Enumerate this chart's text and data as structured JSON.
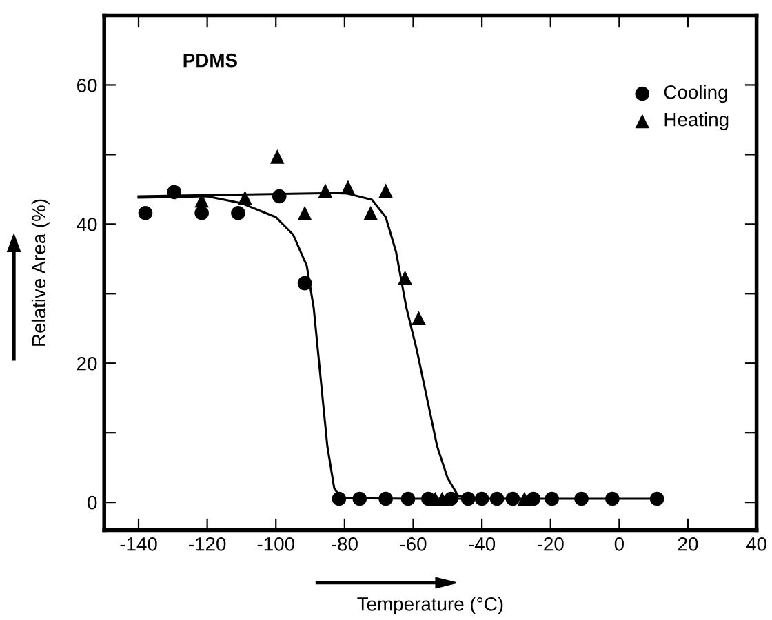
{
  "chart_data": {
    "type": "scatter",
    "xlabel": "Temperature (°C)",
    "ylabel": "Relative Area (%)",
    "annotations": [
      "PDMS"
    ],
    "xlim": [
      -150,
      40
    ],
    "ylim": [
      -4,
      70
    ],
    "xticks": [
      -140,
      -120,
      -100,
      -80,
      -60,
      -40,
      -20,
      0,
      20,
      40
    ],
    "yticks": [
      0,
      {
        "value": 10,
        "label": null
      },
      20,
      {
        "value": 30,
        "label": null
      },
      40,
      {
        "value": 50,
        "label": null
      },
      60
    ],
    "grid": false,
    "legend": "top right",
    "series": [
      {
        "name": "Cooling",
        "color": "#000000",
        "marker": "circle",
        "x": [
          -138,
          -129.6,
          -121.6,
          -111,
          -99,
          -91.6,
          -81.6,
          -75.6,
          -68,
          -61.5,
          -55.6,
          -49,
          -44,
          -40,
          -35.6,
          -31,
          -25,
          -19.6,
          -11,
          -2,
          11
        ],
        "values": [
          41.6,
          44.6,
          41.6,
          41.6,
          44,
          31.5,
          0.5,
          0.5,
          0.5,
          0.5,
          0.5,
          0.5,
          0.5,
          0.5,
          0.5,
          0.5,
          0.5,
          0.5,
          0.5,
          0.5,
          0.5
        ]
      },
      {
        "name": "Heating",
        "color": "#000000",
        "marker": "triangle",
        "x": [
          -121.6,
          -109,
          -99.6,
          -91.6,
          -85.6,
          -79,
          -72.4,
          -68,
          -62.4,
          -58.4,
          -53.6,
          -51.6,
          -27.6
        ],
        "values": [
          43.4,
          43.8,
          49.7,
          41.6,
          44.8,
          45.3,
          41.6,
          44.8,
          32.3,
          26.5,
          0.5,
          0.5,
          0.5
        ]
      },
      {
        "type": "line",
        "color": "#000000",
        "line_style": "solid",
        "x": [
          -140,
          -120,
          -110,
          -100,
          -95,
          -91,
          -89,
          -87,
          -85,
          -83,
          -81,
          -60,
          -20,
          11
        ],
        "values": [
          43.8,
          44,
          43,
          41,
          38.5,
          34,
          28,
          18,
          8,
          2,
          0.6,
          0.5,
          0.5,
          0.5
        ]
      },
      {
        "type": "line",
        "color": "#000000",
        "line_style": "solid",
        "x": [
          -140,
          -80,
          -72,
          -68,
          -65,
          -62,
          -59,
          -56,
          -53,
          -50,
          -47,
          -44
        ],
        "values": [
          44,
          44.5,
          43.5,
          41,
          36,
          28,
          22,
          15,
          8,
          3.5,
          1,
          0.5
        ]
      }
    ]
  }
}
